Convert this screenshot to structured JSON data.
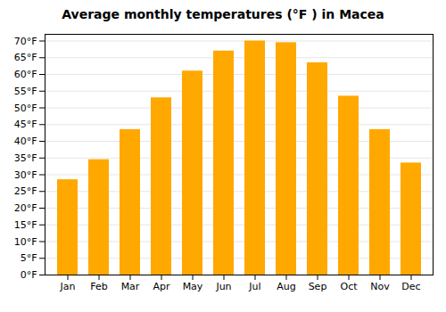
{
  "chart_data": {
    "type": "bar",
    "title": "Average monthly temperatures (°F ) in Macea",
    "categories": [
      "Jan",
      "Feb",
      "Mar",
      "Apr",
      "May",
      "Jun",
      "Jul",
      "Aug",
      "Sep",
      "Oct",
      "Nov",
      "Dec"
    ],
    "values": [
      28.5,
      34.5,
      43.5,
      53.0,
      61.0,
      67.0,
      70.0,
      69.5,
      63.5,
      53.5,
      43.5,
      33.5
    ],
    "color": "#FFA800",
    "ylim": [
      0,
      72
    ],
    "yticks": [
      {
        "value": 0,
        "label": "0°F"
      },
      {
        "value": 5,
        "label": "5°F"
      },
      {
        "value": 10,
        "label": "10°F"
      },
      {
        "value": 15,
        "label": "15°F"
      },
      {
        "value": 20,
        "label": "20°F"
      },
      {
        "value": 25,
        "label": "25°F"
      },
      {
        "value": 30,
        "label": "30°F"
      },
      {
        "value": 35,
        "label": "35°F"
      },
      {
        "value": 40,
        "label": "40°F"
      },
      {
        "value": 45,
        "label": "45°F"
      },
      {
        "value": 50,
        "label": "50°F"
      },
      {
        "value": 55,
        "label": "55°F"
      },
      {
        "value": 60,
        "label": "60°F"
      },
      {
        "value": 65,
        "label": "65°F"
      },
      {
        "value": 70,
        "label": "70°F"
      }
    ],
    "grid": true
  }
}
